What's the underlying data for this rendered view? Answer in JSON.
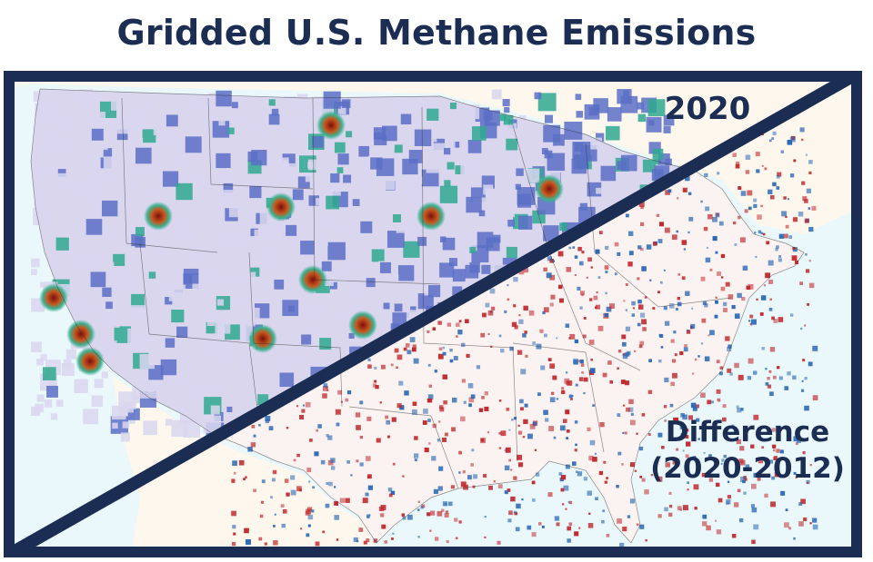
{
  "title": "Gridded U.S. Methane Emissions",
  "panel_top_label": "2020",
  "panel_bottom_label_line1": "Difference",
  "panel_bottom_label_line2": "(2020-2012)",
  "colors": {
    "frame_navy": "#1b2d52",
    "ocean": "#eaf7fb",
    "land_bg": "#fdf7ee",
    "low_emission": "#d9d6ee",
    "mid_emission": "#5a6fc6",
    "high_emission": "#2fa88f",
    "hotspot": "#8b1a1a",
    "increase": "#c0282d",
    "decrease": "#2a68b4"
  }
}
